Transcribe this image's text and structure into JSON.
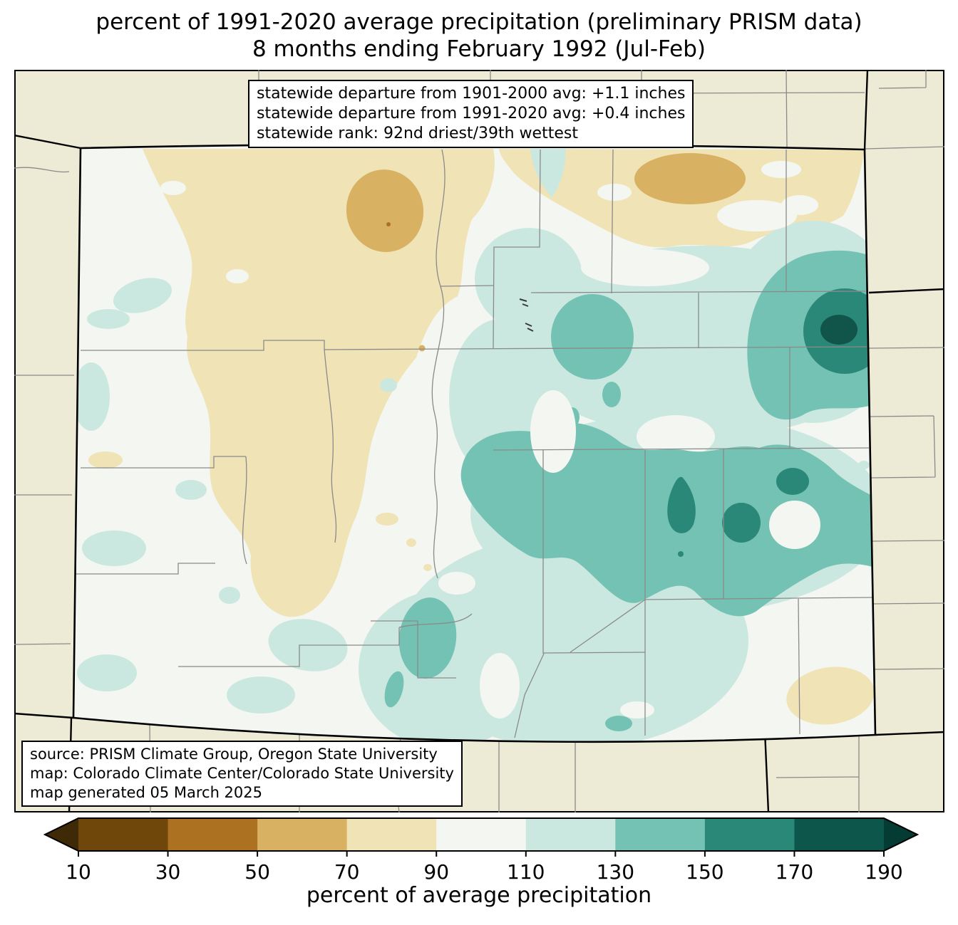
{
  "title": {
    "line1": "percent of 1991-2020 average precipitation (preliminary PRISM data)",
    "line2": "8 months ending February 1992 (Jul-Feb)"
  },
  "stats_box": {
    "line1": "statewide departure from 1901-2000 avg: +1.1 inches",
    "line2": "statewide departure from 1991-2020 avg: +0.4 inches",
    "line3": "statewide rank: 92nd driest/39th wettest"
  },
  "source_box": {
    "line1": "source: PRISM Climate Group, Oregon State University",
    "line2": "map: Colorado Climate Center/Colorado State University",
    "line3": "map generated 05 March 2025"
  },
  "colorbar": {
    "label": "percent of average precipitation",
    "tick_labels": [
      "10",
      "30",
      "50",
      "70",
      "90",
      "110",
      "130",
      "150",
      "170",
      "190"
    ],
    "segment_colors": [
      "#6f470b",
      "#ad7122",
      "#d9b163",
      "#f0e3b6",
      "#f4f6f2",
      "#cbe8e0",
      "#74c2b3",
      "#2a8879",
      "#0d564b"
    ],
    "under_arrow_color": "#3f2a07",
    "over_arrow_color": "#043b33"
  },
  "map": {
    "region": "Colorado",
    "band_colors": {
      "b30": "#ad7122",
      "b50": "#d9b163",
      "b70": "#f0e3b6",
      "b90": "#f4f6f2",
      "b110": "#cbe8e0",
      "b130": "#74c2b3",
      "b150": "#2a8879",
      "b170": "#115449"
    },
    "background_color": "#edebd6",
    "state_border_color": "#000000",
    "county_line_color": "#8a8a8a"
  }
}
